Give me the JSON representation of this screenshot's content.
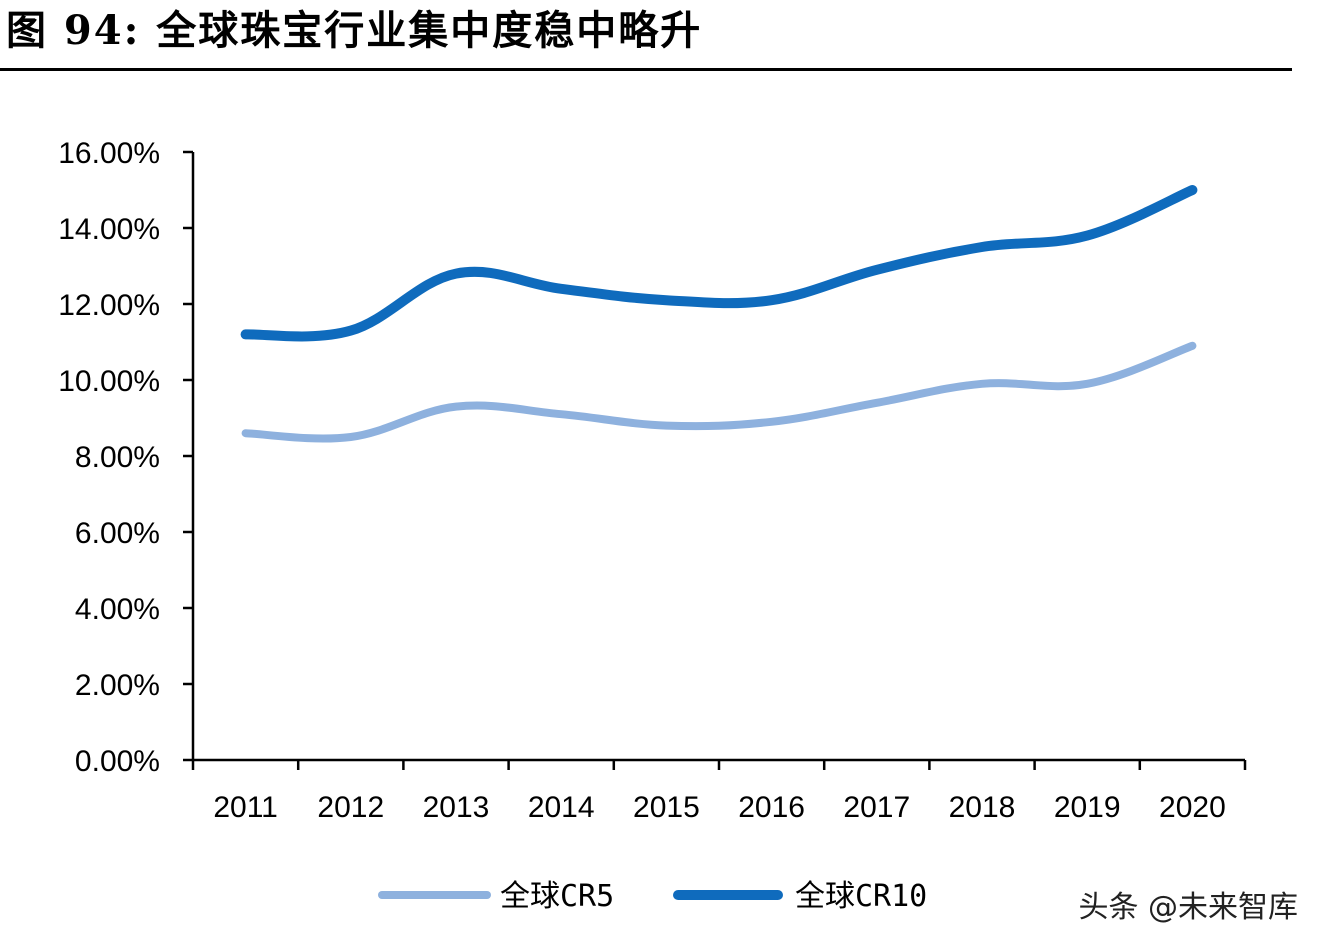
{
  "figure": {
    "title": "图 94:  全球珠宝行业集中度稳中略升"
  },
  "watermark": "头条 @未来智库",
  "colors": {
    "cr5": "#8eb1de",
    "cr10": "#0f6bbd",
    "axis": "#000000"
  },
  "chart_data": {
    "type": "line",
    "title": "",
    "xlabel": "",
    "ylabel": "",
    "categories": [
      "2011",
      "2012",
      "2013",
      "2014",
      "2015",
      "2016",
      "2017",
      "2018",
      "2019",
      "2020"
    ],
    "series": [
      {
        "name": "全球CR5",
        "values": [
          8.6,
          8.5,
          9.3,
          9.1,
          8.8,
          8.9,
          9.4,
          9.9,
          9.9,
          10.9
        ]
      },
      {
        "name": "全球CR10",
        "values": [
          11.2,
          11.3,
          12.8,
          12.4,
          12.1,
          12.1,
          12.9,
          13.5,
          13.8,
          15.0
        ]
      }
    ],
    "yticks": [
      "0.00%",
      "2.00%",
      "4.00%",
      "6.00%",
      "8.00%",
      "10.00%",
      "12.00%",
      "14.00%",
      "16.00%"
    ],
    "ylim": [
      0,
      16
    ],
    "grid": false,
    "legend": "bottom"
  }
}
